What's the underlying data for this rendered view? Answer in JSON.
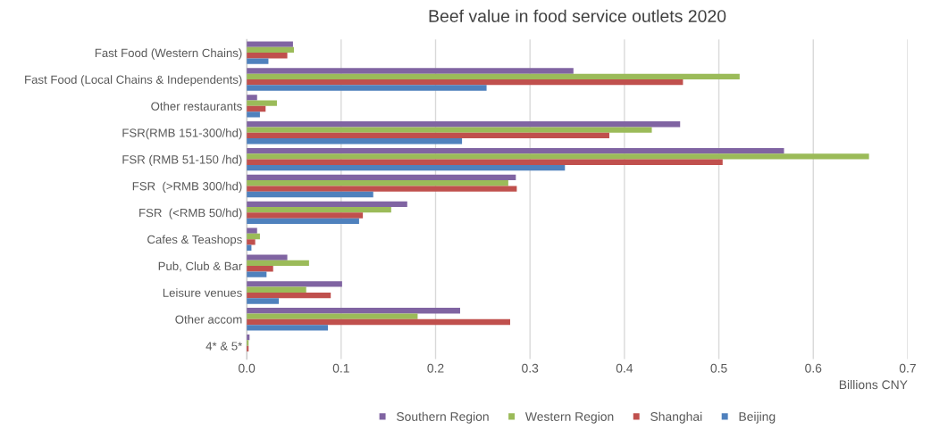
{
  "chart_data": {
    "type": "bar",
    "orientation": "horizontal",
    "title": "Beef value in food service outlets 2020",
    "xlabel": "Billions CNY",
    "categories": [
      "Fast Food (Western Chains)",
      "Fast Food (Local Chains & Independents)",
      "Other restaurants",
      "FSR(RMB 151-300/hd)",
      "FSR (RMB 51-150 /hd)",
      "FSR  (>RMB 300/hd)",
      "FSR  (<RMB 50/hd)",
      "Cafes & Teashops",
      "Pub, Club & Bar",
      "Leisure venues",
      "Other accom",
      "4* & 5*"
    ],
    "series": [
      {
        "name": "Southern Region",
        "color": "#8064a2",
        "values": [
          0.049,
          0.346,
          0.011,
          0.459,
          0.569,
          0.285,
          0.17,
          0.011,
          0.043,
          0.101,
          0.226,
          0.003
        ]
      },
      {
        "name": "Western Region",
        "color": "#9bbb59",
        "values": [
          0.05,
          0.522,
          0.032,
          0.429,
          0.659,
          0.277,
          0.153,
          0.014,
          0.066,
          0.063,
          0.181,
          0.002
        ]
      },
      {
        "name": "Shanghai",
        "color": "#c0504d",
        "values": [
          0.043,
          0.462,
          0.02,
          0.384,
          0.504,
          0.286,
          0.123,
          0.009,
          0.028,
          0.089,
          0.279,
          0.002
        ]
      },
      {
        "name": "Beijing",
        "color": "#4f81bd",
        "values": [
          0.023,
          0.254,
          0.014,
          0.228,
          0.337,
          0.134,
          0.119,
          0.005,
          0.021,
          0.034,
          0.086,
          null
        ]
      }
    ],
    "xlim": [
      0,
      0.7
    ],
    "xticks": [
      {
        "value": 0,
        "label": "0.0"
      },
      0.1,
      0.2,
      0.3,
      0.4,
      0.5,
      0.6,
      0.7
    ],
    "grid": "x",
    "legend": "bottom"
  }
}
